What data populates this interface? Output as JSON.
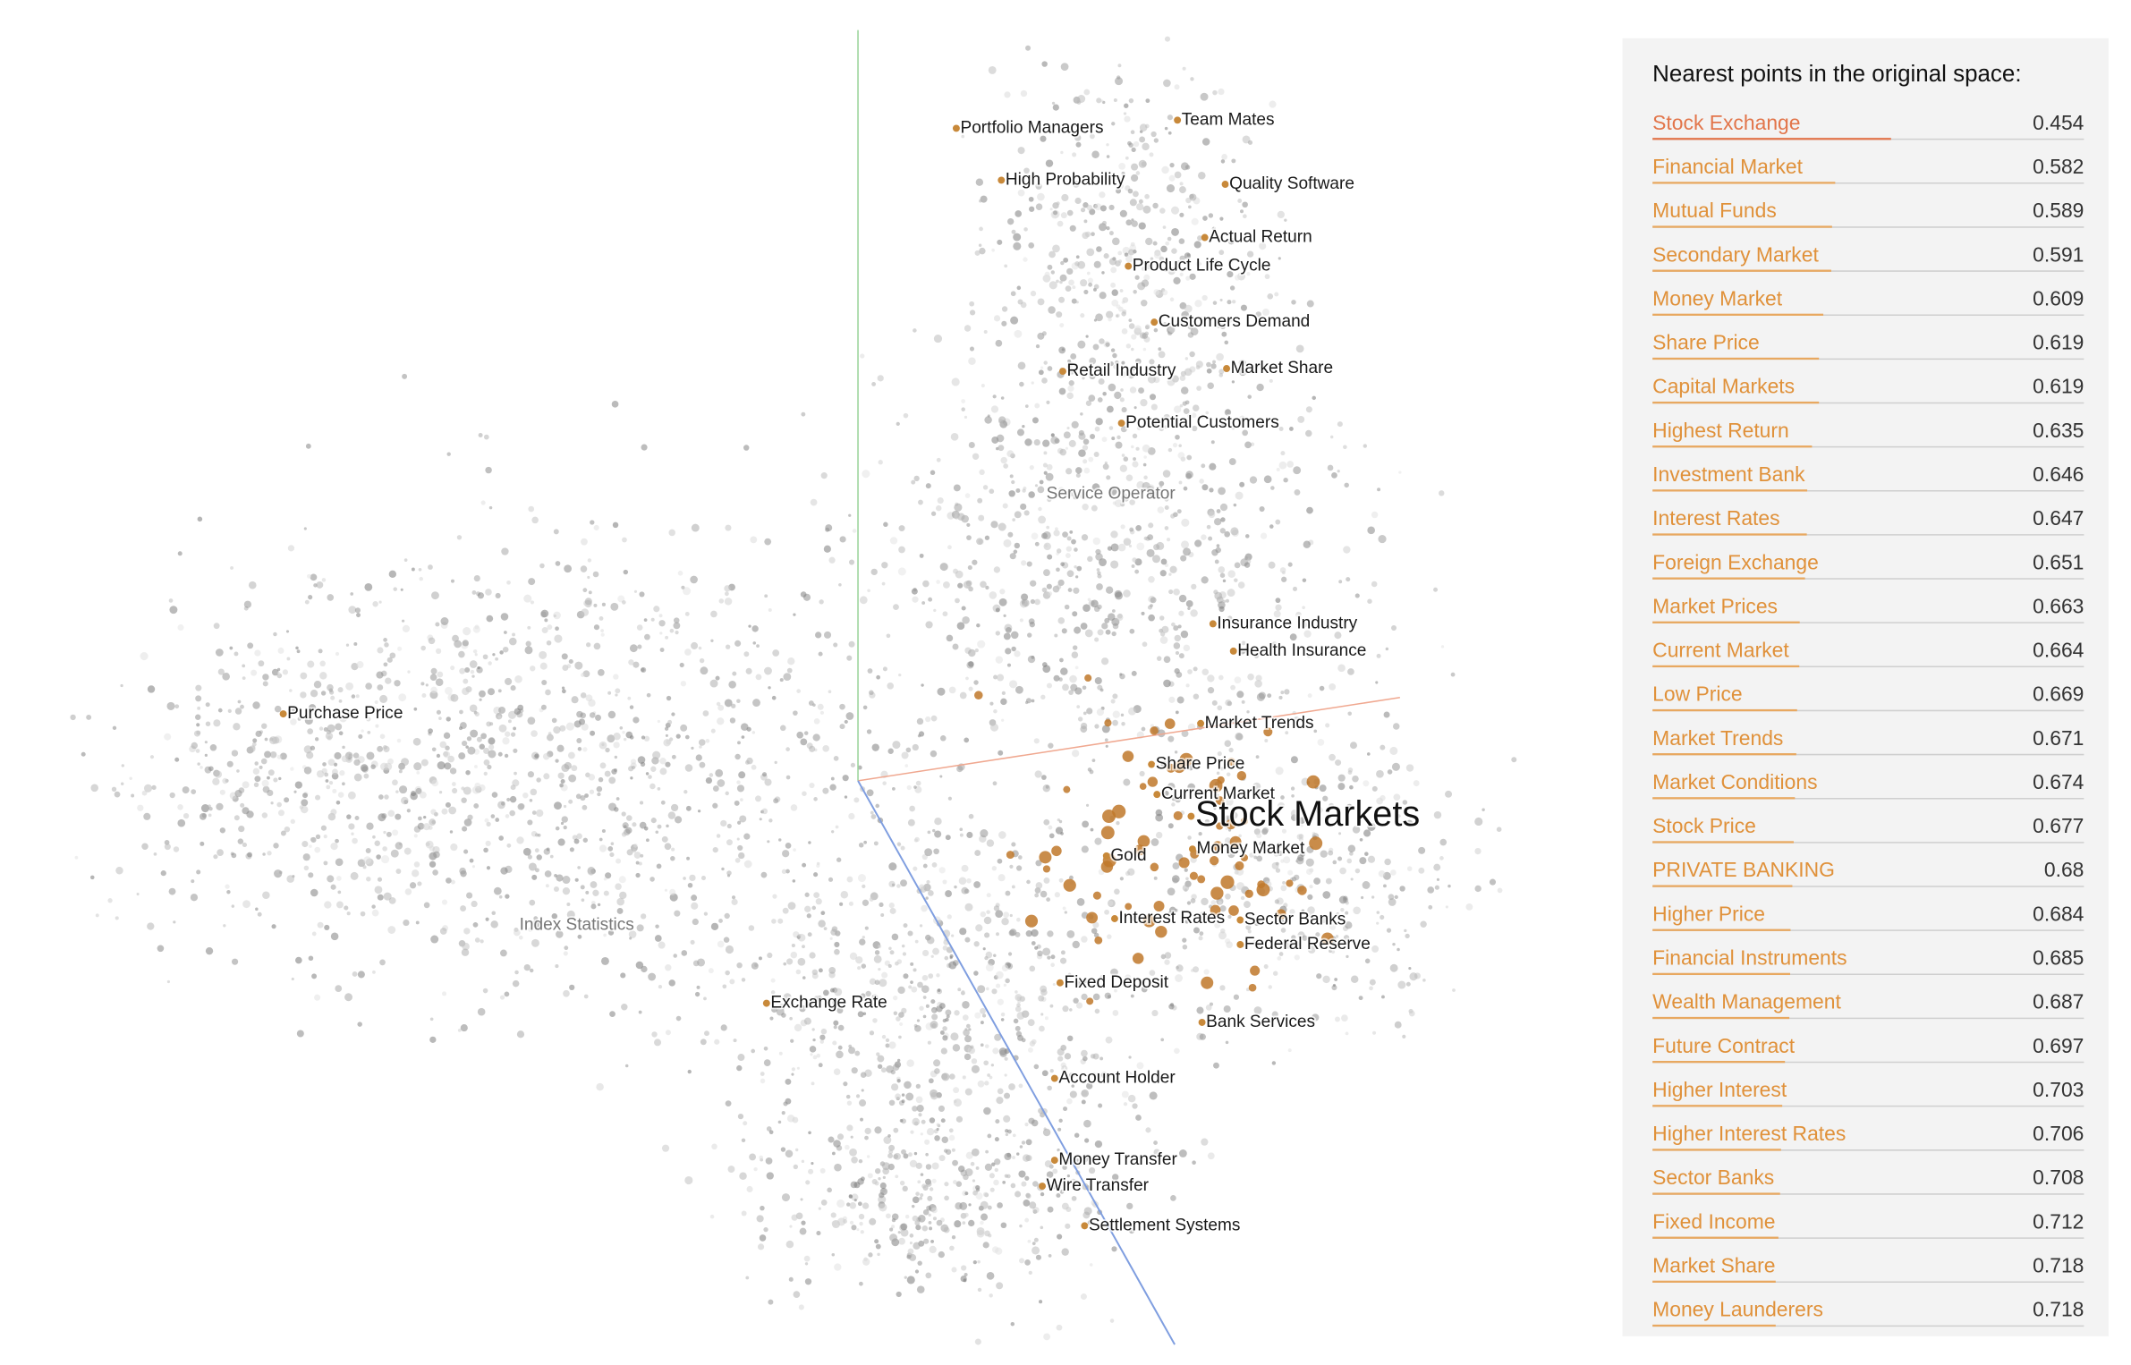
{
  "scatter": {
    "labels": [
      "Portfolio Managers",
      "Team Mates",
      "High Probability",
      "Quality Software",
      "Actual Return",
      "Product Life Cycle",
      "Customers Demand",
      "Retail Industry",
      "Market Share",
      "Potential Customers",
      "Service Operator",
      "Insurance Industry",
      "Health Insurance",
      "Purchase Price",
      "Market Trends",
      "Share Price",
      "Current Market",
      "Stock Markets",
      "Gold",
      "Money Market",
      "Index Statistics",
      "Interest Rates",
      "Sector Banks",
      "Federal Reserve",
      "Fixed Deposit",
      "Exchange Rate",
      "Bank Services",
      "Account Holder",
      "Money Transfer",
      "Wire Transfer",
      "Settlement Systems"
    ]
  },
  "panel": {
    "title": "Nearest points in the original space:",
    "rows": [
      {
        "name": "Stock Exchange",
        "distance": 0.454
      },
      {
        "name": "Financial Market",
        "distance": 0.582
      },
      {
        "name": "Mutual Funds",
        "distance": 0.589
      },
      {
        "name": "Secondary Market",
        "distance": 0.591
      },
      {
        "name": "Money Market",
        "distance": 0.609
      },
      {
        "name": "Share Price",
        "distance": 0.619
      },
      {
        "name": "Capital Markets",
        "distance": 0.619
      },
      {
        "name": "Highest Return",
        "distance": 0.635
      },
      {
        "name": "Investment Bank",
        "distance": 0.646
      },
      {
        "name": "Interest Rates",
        "distance": 0.647
      },
      {
        "name": "Foreign Exchange",
        "distance": 0.651
      },
      {
        "name": "Market Prices",
        "distance": 0.663
      },
      {
        "name": "Current Market",
        "distance": 0.664
      },
      {
        "name": "Low Price",
        "distance": 0.669
      },
      {
        "name": "Market Trends",
        "distance": 0.671
      },
      {
        "name": "Market Conditions",
        "distance": 0.674
      },
      {
        "name": "Stock Price",
        "distance": 0.677
      },
      {
        "name": "PRIVATE BANKING",
        "distance": 0.68
      },
      {
        "name": "Higher Price",
        "distance": 0.684
      },
      {
        "name": "Financial Instruments",
        "distance": 0.685
      },
      {
        "name": "Wealth Management",
        "distance": 0.687
      },
      {
        "name": "Future Contract",
        "distance": 0.697
      },
      {
        "name": "Higher Interest",
        "distance": 0.703
      },
      {
        "name": "Higher Interest Rates",
        "distance": 0.706
      },
      {
        "name": "Sector Banks",
        "distance": 0.708
      },
      {
        "name": "Fixed Income",
        "distance": 0.712
      },
      {
        "name": "Market Share",
        "distance": 0.718
      },
      {
        "name": "Money Launderers",
        "distance": 0.718
      }
    ]
  }
}
